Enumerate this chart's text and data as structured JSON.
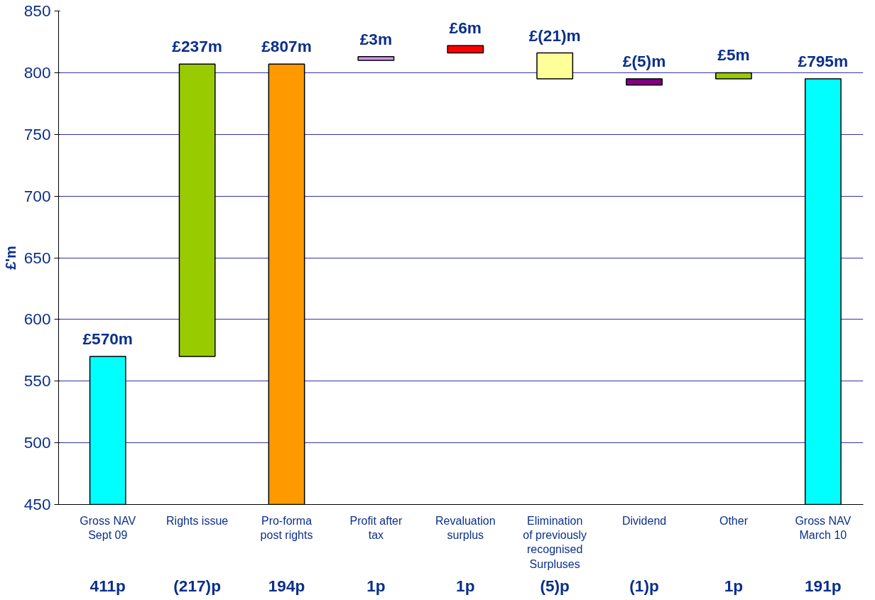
{
  "chart_data": {
    "type": "bar",
    "ylabel": "£'m",
    "categories": [
      "Gross NAV\nSept 09",
      "Rights issue",
      "Pro-forma\npost rights",
      "Profit after\ntax",
      "Revaluation\nsurplus",
      "Elimination\nof previously\nrecognised\nSurpluses",
      "Dividend",
      "Other",
      "Gross NAV\nMarch 10"
    ],
    "values": [
      570,
      237,
      807,
      3,
      6,
      -21,
      -5,
      5,
      795
    ],
    "base": [
      null,
      570,
      null,
      810,
      816,
      816,
      795,
      795,
      null
    ],
    "colors": [
      "#00ffff",
      "#99cc00",
      "#ff9900",
      "#cc99ff",
      "#ff0000",
      "#ffff99",
      "#800080",
      "#99cc00",
      "#00ffff"
    ],
    "value_labels": [
      "£570m",
      "£237m",
      "£807m",
      "£3m",
      "£6m",
      "£(21)m",
      "£(5)m",
      "£5m",
      "£795m"
    ],
    "annotations": [
      "411p",
      "(217)p",
      "194p",
      "1p",
      "1p",
      "(5)p",
      "(1)p",
      "1p",
      "191p"
    ],
    "ylim": [
      450,
      850
    ],
    "yticks": [
      450,
      500,
      550,
      600,
      650,
      700,
      750,
      800,
      850
    ],
    "grid": "y"
  }
}
